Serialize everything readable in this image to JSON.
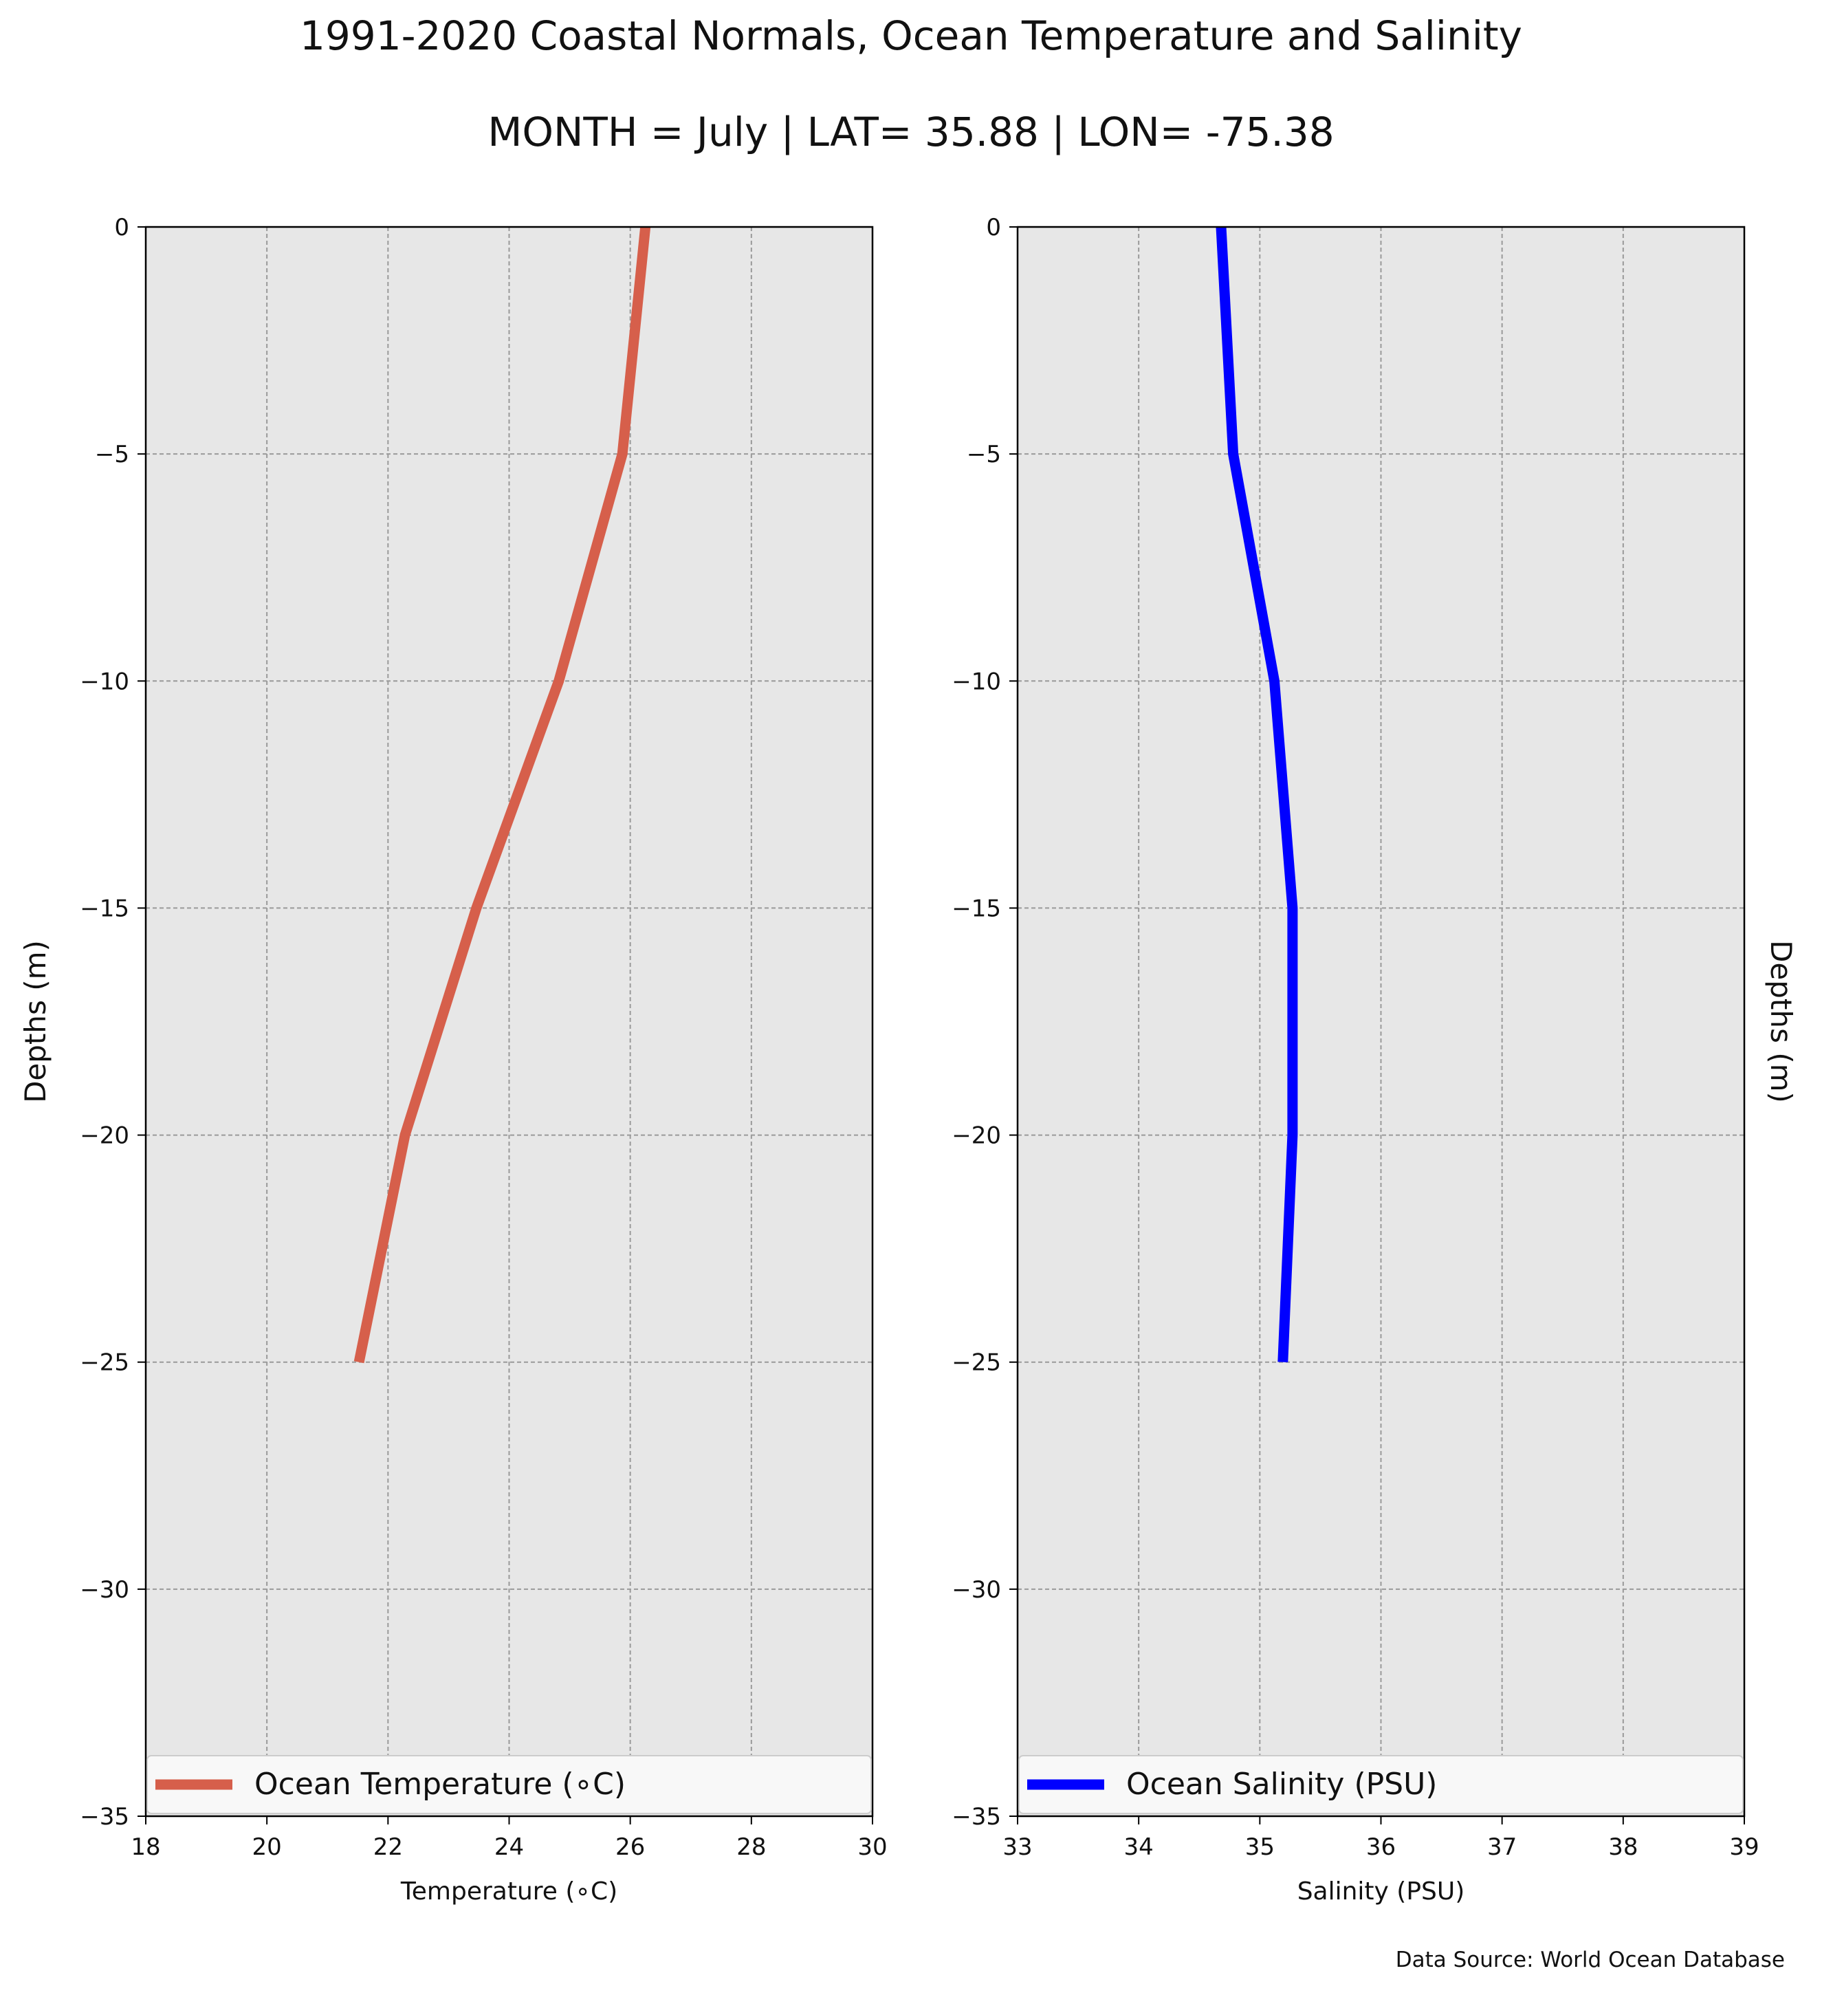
{
  "figure": {
    "title": "1991-2020 Coastal Normals, Ocean Temperature and Salinity",
    "subtitle": "MONTH = July | LAT= 35.88 | LON= -75.38",
    "source": "Data Source: World Ocean Database"
  },
  "chart_data": [
    {
      "type": "line",
      "xlabel": "Temperature (∘C)",
      "ylabel": "Depths (m)",
      "xlim": [
        18,
        30
      ],
      "ylim": [
        -35,
        0
      ],
      "xticks": [
        18,
        20,
        22,
        24,
        26,
        28,
        30
      ],
      "xtick_labels": [
        "18",
        "20",
        "22",
        "24",
        "26",
        "28",
        "30"
      ],
      "yticks": [
        0,
        -5,
        -10,
        -15,
        -20,
        -25,
        -30,
        -35
      ],
      "ytick_labels": [
        "0",
        "−5",
        "−10",
        "−15",
        "−20",
        "−25",
        "−30",
        "−35"
      ],
      "grid": true,
      "background": "#e7e7e7",
      "legend_position": "lower-center",
      "series": [
        {
          "name": "Ocean Temperature (∘C)",
          "color": "#d65f4b",
          "x": [
            26.25,
            25.87,
            24.82,
            23.46,
            22.28,
            21.52
          ],
          "y": [
            0,
            -5,
            -10,
            -15,
            -20,
            -25
          ]
        }
      ]
    },
    {
      "type": "line",
      "xlabel": "Salinity (PSU)",
      "ylabel": "Depths (m)",
      "xlim": [
        33,
        39
      ],
      "ylim": [
        -35,
        0
      ],
      "xticks": [
        33,
        34,
        35,
        36,
        37,
        38,
        39
      ],
      "xtick_labels": [
        "33",
        "34",
        "35",
        "36",
        "37",
        "38",
        "39"
      ],
      "yticks": [
        0,
        -5,
        -10,
        -15,
        -20,
        -25,
        -30,
        -35
      ],
      "ytick_labels": [
        "0",
        "−5",
        "−10",
        "−15",
        "−20",
        "−25",
        "−30",
        "−35"
      ],
      "grid": true,
      "background": "#e7e7e7",
      "legend_position": "lower-center",
      "series": [
        {
          "name": "Ocean Salinity (PSU)",
          "color": "#0000ff",
          "x": [
            34.68,
            34.78,
            35.12,
            35.27,
            35.27,
            35.19
          ],
          "y": [
            0,
            -5,
            -10,
            -15,
            -20,
            -25
          ]
        }
      ]
    }
  ]
}
